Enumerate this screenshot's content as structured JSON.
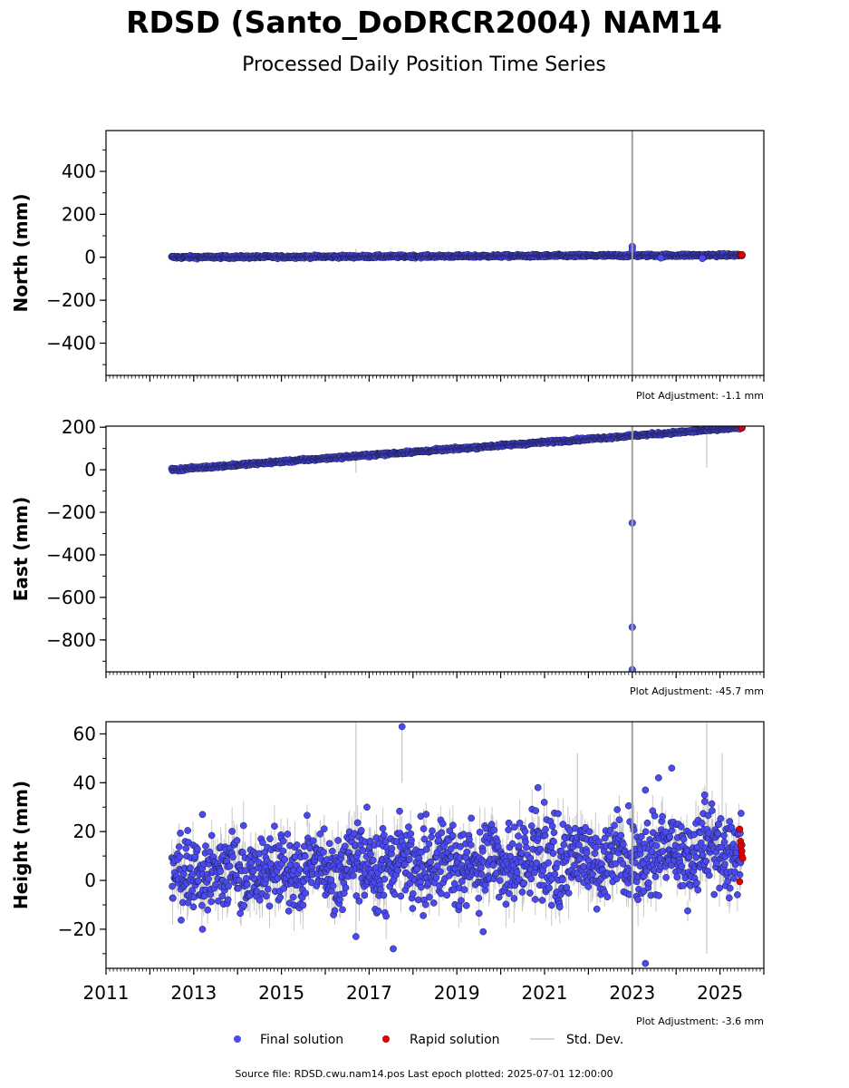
{
  "title": "RDSD (Santo_DoDRCR2004) NAM14",
  "subtitle": "Processed Daily Position Time Series",
  "footer": "Source file: RDSD.cwu.nam14.pos  Last epoch plotted: 2025-07-01 12:00:00",
  "legend": {
    "final_label": "Final solution",
    "rapid_label": "Rapid solution",
    "std_label": "Std. Dev."
  },
  "colors": {
    "final": "#4a4af0",
    "rapid": "#e00000",
    "stddev": "#c8c8c8",
    "event_line": "#a0a0a0"
  },
  "chart_data": [
    {
      "type": "scatter",
      "panel": "north",
      "ylabel": "North (mm)",
      "adjustment_note": "Plot Adjustment: -1.1 mm",
      "xlim": [
        2011.0,
        2026.0
      ],
      "ylim": [
        -550,
        590
      ],
      "yticks": [
        -400,
        -200,
        0,
        200,
        400
      ],
      "yticks_labels": [
        "−400",
        "−200",
        "0",
        "200",
        "400"
      ],
      "event_lines": [
        2023.0
      ],
      "final_trend": [
        [
          2012.5,
          0
        ],
        [
          2025.5,
          10
        ]
      ],
      "final_noise": 3,
      "final_outliers": [
        [
          2023.0,
          50
        ],
        [
          2023.0,
          35
        ],
        [
          2023.65,
          -3
        ],
        [
          2024.6,
          -5
        ]
      ],
      "rapid_points": [
        [
          2025.48,
          11
        ],
        [
          2025.5,
          12
        ]
      ],
      "stddev_spikes": [
        [
          2016.7,
          -10,
          40
        ]
      ]
    },
    {
      "type": "scatter",
      "panel": "east",
      "ylabel": "East (mm)",
      "adjustment_note": "Plot Adjustment: -45.7 mm",
      "xlim": [
        2011.0,
        2026.0
      ],
      "ylim": [
        -950,
        205
      ],
      "yticks": [
        -800,
        -600,
        -400,
        -200,
        0,
        200
      ],
      "yticks_labels": [
        "−800",
        "−600",
        "−400",
        "−200",
        "0",
        "200"
      ],
      "event_lines": [
        2023.0
      ],
      "final_trend": [
        [
          2012.5,
          0
        ],
        [
          2025.5,
          198
        ]
      ],
      "final_noise": 3,
      "final_outliers": [
        [
          2023.0,
          -250
        ],
        [
          2023.0,
          -740
        ],
        [
          2023.0,
          -940
        ]
      ],
      "rapid_points": [
        [
          2025.48,
          198
        ],
        [
          2025.5,
          200
        ]
      ],
      "stddev_spikes": [
        [
          2016.7,
          -15,
          90
        ],
        [
          2024.7,
          10,
          190
        ]
      ]
    },
    {
      "type": "scatter",
      "panel": "height",
      "ylabel": "Height (mm)",
      "adjustment_note": "Plot Adjustment: -3.6 mm",
      "xlim": [
        2011.0,
        2026.0
      ],
      "ylim": [
        -36,
        65
      ],
      "yticks": [
        -20,
        0,
        20,
        40,
        60
      ],
      "yticks_labels": [
        "−20",
        "0",
        "20",
        "40",
        "60"
      ],
      "xticks": [
        2011,
        2013,
        2015,
        2017,
        2019,
        2021,
        2023,
        2025
      ],
      "xticks_labels": [
        "2011",
        "2013",
        "2015",
        "2017",
        "2019",
        "2021",
        "2023",
        "2025"
      ],
      "event_lines": [
        2023.0
      ],
      "final_trend": [
        [
          2012.5,
          2
        ],
        [
          2025.5,
          12
        ]
      ],
      "final_noise": 8,
      "final_outliers": [
        [
          2017.75,
          63
        ],
        [
          2013.2,
          27
        ],
        [
          2016.95,
          30
        ],
        [
          2020.85,
          38
        ],
        [
          2023.6,
          42
        ],
        [
          2023.9,
          46
        ],
        [
          2023.3,
          37
        ],
        [
          2024.65,
          35
        ],
        [
          2023.3,
          -34
        ],
        [
          2017.55,
          -28
        ],
        [
          2013.2,
          -20
        ],
        [
          2016.7,
          -23
        ],
        [
          2019.6,
          -21
        ]
      ],
      "rapid_points": [
        [
          2025.45,
          21
        ],
        [
          2025.47,
          16
        ],
        [
          2025.48,
          14
        ],
        [
          2025.5,
          12
        ],
        [
          2025.5,
          10
        ],
        [
          2025.52,
          9
        ],
        [
          2025.45,
          -0.5
        ]
      ],
      "stddev_spikes": [
        [
          2016.7,
          -22,
          65
        ],
        [
          2017.75,
          40,
          63
        ],
        [
          2024.7,
          -30,
          65
        ],
        [
          2025.05,
          20,
          52
        ],
        [
          2021.75,
          5,
          52
        ]
      ]
    }
  ]
}
